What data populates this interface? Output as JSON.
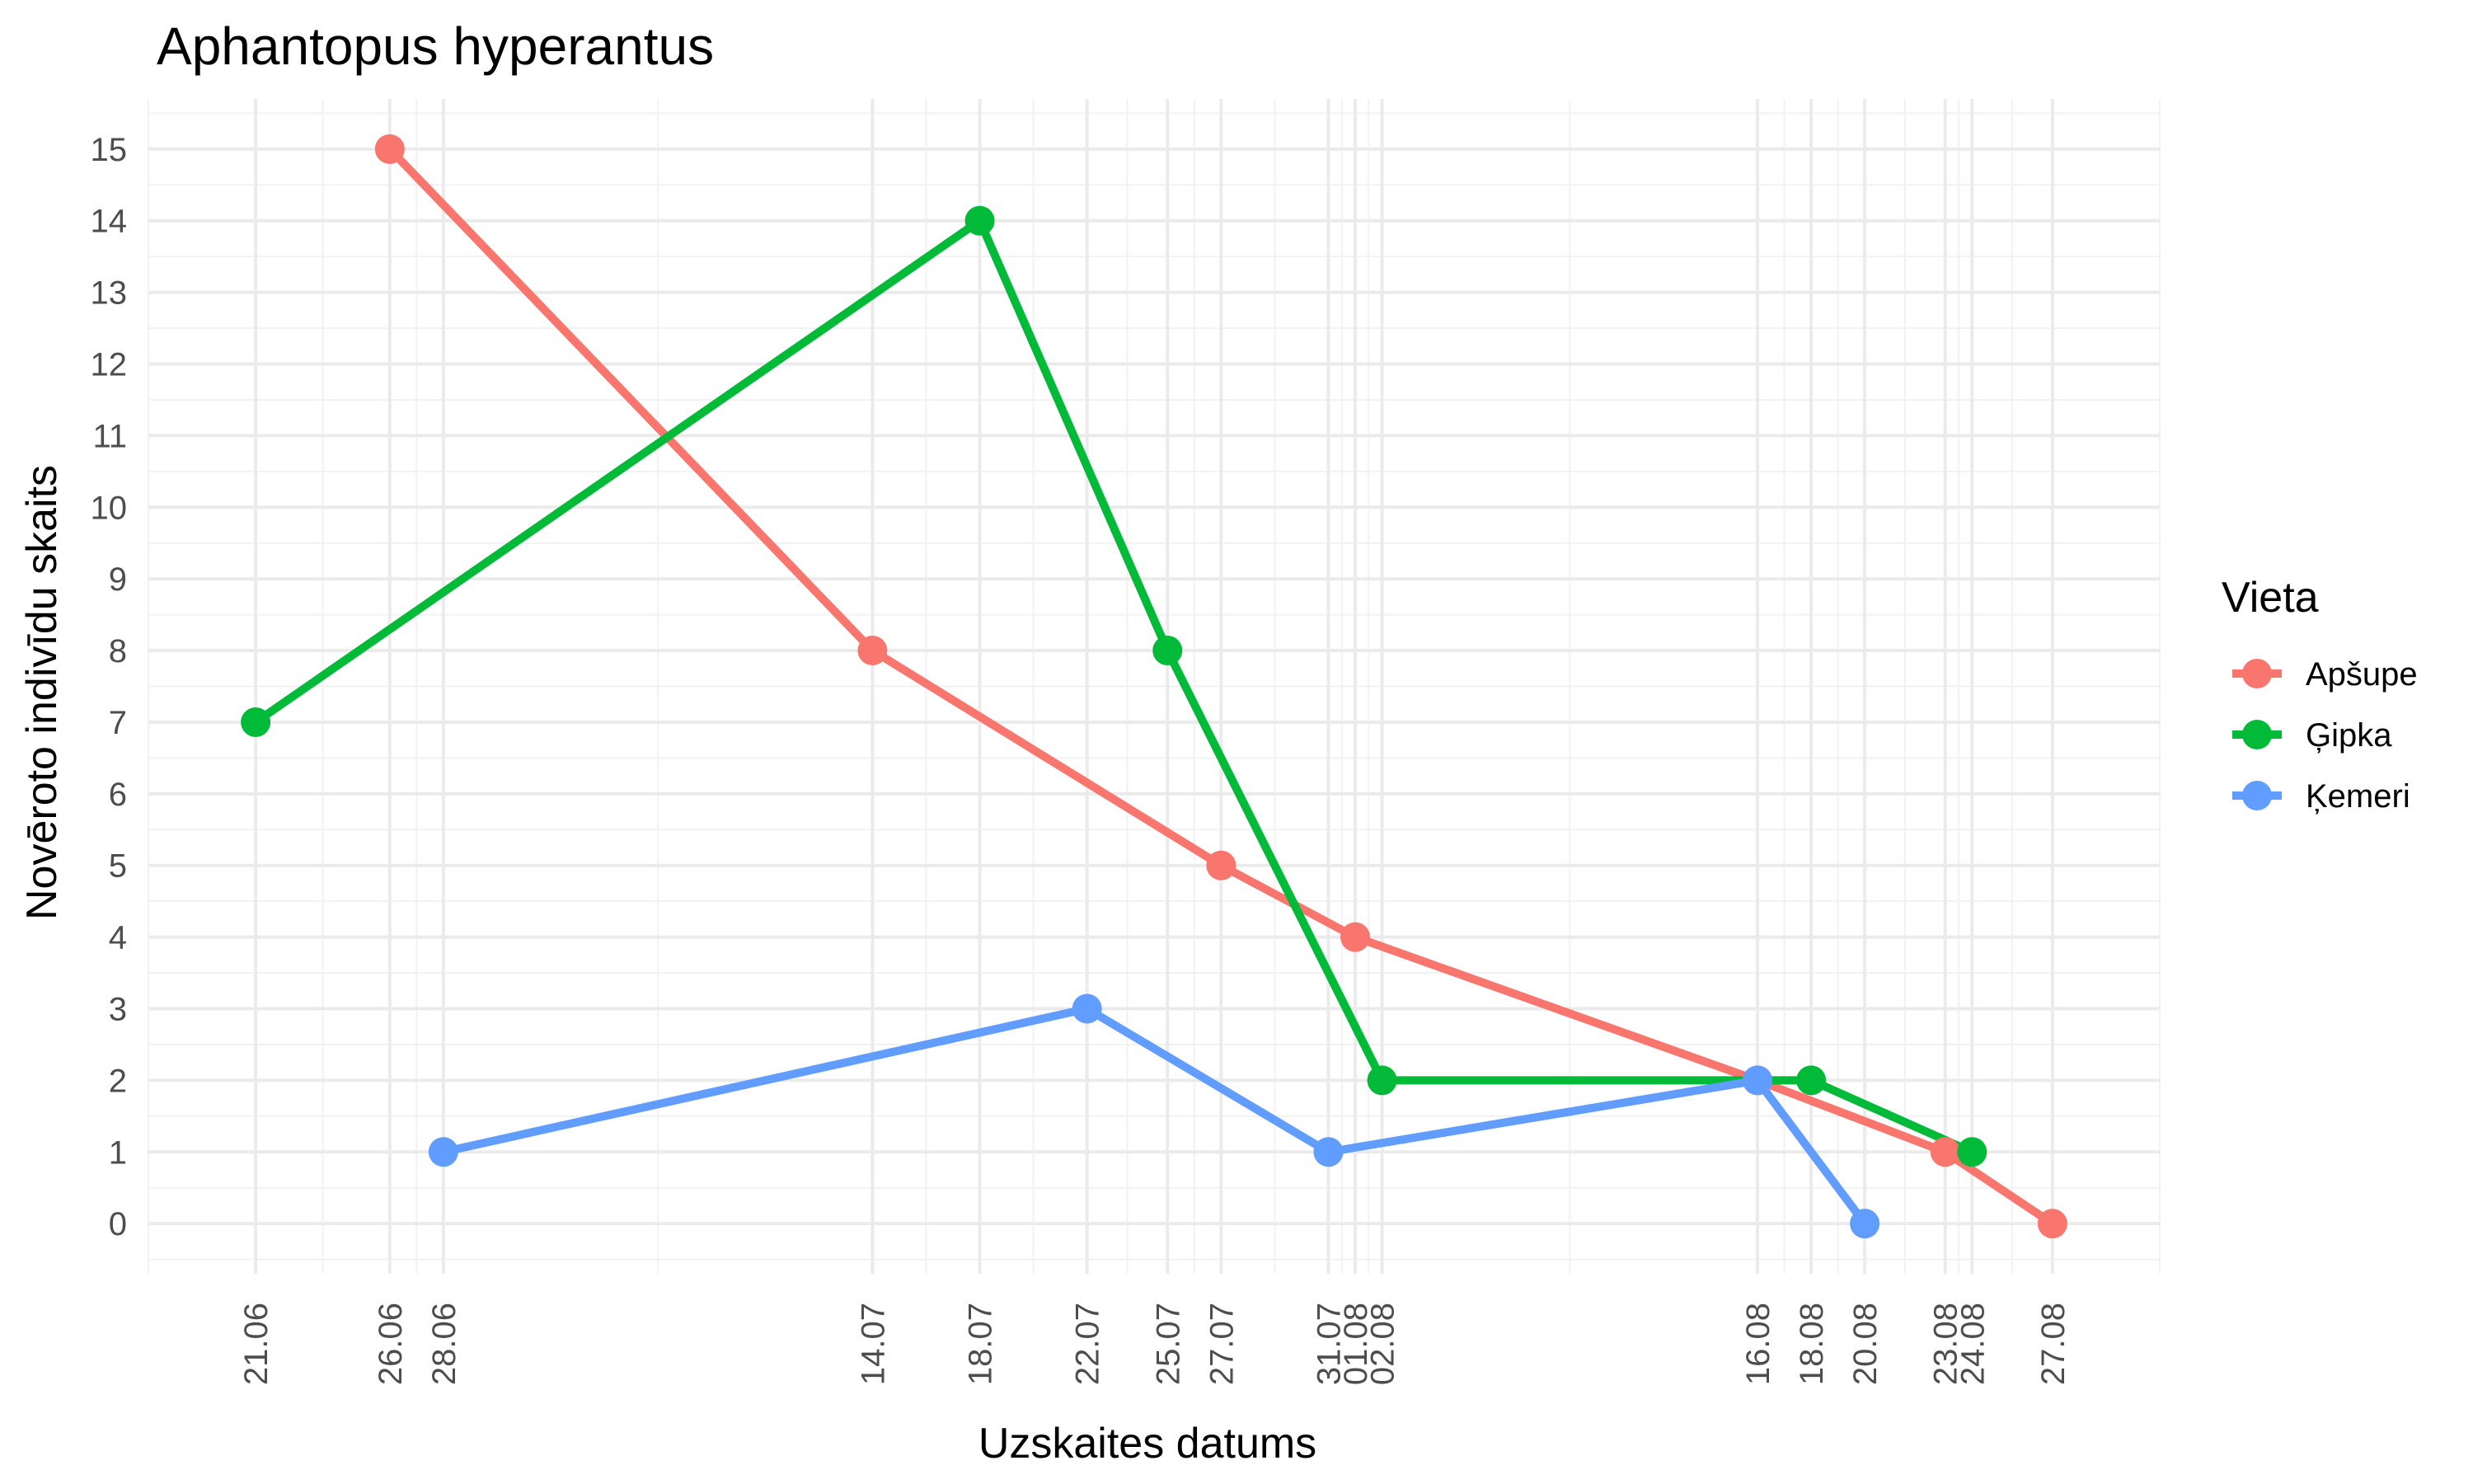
{
  "chart_data": {
    "type": "line",
    "title": "Aphantopus hyperantus",
    "xlabel": "Uzskaites datums",
    "ylabel": "Novēroto indivīdu skaits",
    "x_type": "date",
    "xlim": [
      "2023-06-17",
      "2023-08-31"
    ],
    "ylim": [
      -0.7,
      15.7
    ],
    "x_ticks": [
      {
        "date": "2023-06-21",
        "label": "21.06"
      },
      {
        "date": "2023-06-26",
        "label": "26.06"
      },
      {
        "date": "2023-06-28",
        "label": "28.06"
      },
      {
        "date": "2023-07-14",
        "label": "14.07"
      },
      {
        "date": "2023-07-18",
        "label": "18.07"
      },
      {
        "date": "2023-07-22",
        "label": "22.07"
      },
      {
        "date": "2023-07-25",
        "label": "25.07"
      },
      {
        "date": "2023-07-27",
        "label": "27.07"
      },
      {
        "date": "2023-07-31",
        "label": "31.07"
      },
      {
        "date": "2023-08-01",
        "label": "01.08"
      },
      {
        "date": "2023-08-02",
        "label": "02.08"
      },
      {
        "date": "2023-08-16",
        "label": "16.08"
      },
      {
        "date": "2023-08-18",
        "label": "18.08"
      },
      {
        "date": "2023-08-20",
        "label": "20.08"
      },
      {
        "date": "2023-08-23",
        "label": "23.08"
      },
      {
        "date": "2023-08-24",
        "label": "24.08"
      },
      {
        "date": "2023-08-27",
        "label": "27.08"
      }
    ],
    "y_ticks": [
      0,
      1,
      2,
      3,
      4,
      5,
      6,
      7,
      8,
      9,
      10,
      11,
      12,
      13,
      14,
      15
    ],
    "grid": true,
    "legend": {
      "title": "Vieta",
      "position": "right"
    },
    "series": [
      {
        "name": "Apšupe",
        "color": "#F8766D",
        "points": [
          {
            "x": "2023-06-26",
            "y": 15
          },
          {
            "x": "2023-07-14",
            "y": 8
          },
          {
            "x": "2023-07-27",
            "y": 5
          },
          {
            "x": "2023-08-01",
            "y": 4
          },
          {
            "x": "2023-08-16",
            "y": 2
          },
          {
            "x": "2023-08-23",
            "y": 1
          },
          {
            "x": "2023-08-27",
            "y": 0
          }
        ]
      },
      {
        "name": "Ģipka",
        "color": "#00BA38",
        "points": [
          {
            "x": "2023-06-21",
            "y": 7
          },
          {
            "x": "2023-07-18",
            "y": 14
          },
          {
            "x": "2023-07-25",
            "y": 8
          },
          {
            "x": "2023-08-02",
            "y": 2
          },
          {
            "x": "2023-08-18",
            "y": 2
          },
          {
            "x": "2023-08-24",
            "y": 1
          }
        ]
      },
      {
        "name": "Ķemeri",
        "color": "#619CFF",
        "points": [
          {
            "x": "2023-06-28",
            "y": 1
          },
          {
            "x": "2023-07-22",
            "y": 3
          },
          {
            "x": "2023-07-31",
            "y": 1
          },
          {
            "x": "2023-08-16",
            "y": 2
          },
          {
            "x": "2023-08-20",
            "y": 0
          }
        ]
      }
    ]
  }
}
